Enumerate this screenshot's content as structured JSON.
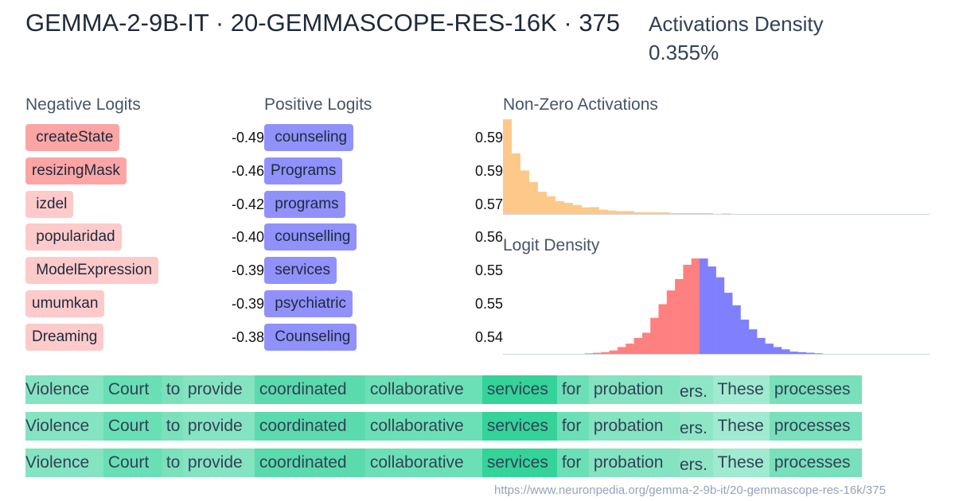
{
  "header": {
    "title": "GEMMA-2-9B-IT · 20-GEMMASCOPE-RES-16K · 375",
    "density_label": "Activations Density",
    "density_value": "0.355%"
  },
  "negative_logits": {
    "label": "Negative Logits",
    "items": [
      {
        "token": " createState",
        "value": "-0.49"
      },
      {
        "token": "resizingMask",
        "value": "-0.46"
      },
      {
        "token": " izdel",
        "value": "-0.42"
      },
      {
        "token": " popularidad",
        "value": "-0.40"
      },
      {
        "token": " ModelExpression",
        "value": "-0.39"
      },
      {
        "token": "umumkan",
        "value": "-0.39"
      },
      {
        "token": "Dreaming",
        "value": "-0.38"
      }
    ]
  },
  "positive_logits": {
    "label": "Positive Logits",
    "items": [
      {
        "token": " counseling",
        "value": "0.59"
      },
      {
        "token": "Programs",
        "value": "0.59"
      },
      {
        "token": " programs",
        "value": "0.57"
      },
      {
        "token": " counselling",
        "value": "0.56"
      },
      {
        "token": " services",
        "value": "0.55"
      },
      {
        "token": " psychiatric",
        "value": "0.55"
      },
      {
        "token": " Counseling",
        "value": "0.54"
      }
    ]
  },
  "chart_data": [
    {
      "type": "bar",
      "title": "Non-Zero Activations",
      "color": "#fdc98a",
      "values": [
        333,
        213,
        153,
        112,
        78,
        62,
        45,
        39,
        31,
        23,
        24,
        15,
        12,
        10,
        10,
        6,
        6,
        6,
        6,
        3,
        3,
        3,
        3,
        3,
        0,
        2
      ]
    },
    {
      "type": "bar",
      "title": "Logit Density",
      "negative_color": "#ff8080",
      "positive_color": "#8080ff",
      "negative_values": [
        2,
        4,
        6,
        12,
        24,
        36,
        56,
        74,
        126,
        174,
        222,
        262,
        312,
        334
      ],
      "positive_values": [
        334,
        306,
        268,
        214,
        170,
        120,
        86,
        56,
        36,
        24,
        16,
        8,
        6,
        4,
        2
      ]
    }
  ],
  "examples": [
    {
      "tokens": [
        {
          "text": "Violence",
          "color": "#84e3c1"
        },
        {
          "text": " Court",
          "color": "#68dfb5"
        },
        {
          "text": " to",
          "color": "#7ae1bb"
        },
        {
          "text": " provide",
          "color": "#84e3c1"
        },
        {
          "text": " coordinated",
          "color": "#5bdaad"
        },
        {
          "text": " collaborative",
          "color": "#6be0b6"
        },
        {
          "text": " services",
          "color": "#34d399"
        },
        {
          "text": " for",
          "color": "#6be0b6"
        },
        {
          "text": " probation",
          "color": "#84e3c1"
        },
        {
          "text": "ers.",
          "color": "#8ee6c6"
        },
        {
          "text": " These",
          "color": "#9fead0"
        },
        {
          "text": " processes",
          "color": "#78e0bb"
        }
      ]
    },
    {
      "tokens": [
        {
          "text": "Violence",
          "color": "#84e3c1"
        },
        {
          "text": " Court",
          "color": "#68dfb5"
        },
        {
          "text": " to",
          "color": "#7ae1bb"
        },
        {
          "text": " provide",
          "color": "#84e3c1"
        },
        {
          "text": " coordinated",
          "color": "#5bdaad"
        },
        {
          "text": " collaborative",
          "color": "#6be0b6"
        },
        {
          "text": " services",
          "color": "#34d399"
        },
        {
          "text": " for",
          "color": "#6be0b6"
        },
        {
          "text": " probation",
          "color": "#84e3c1"
        },
        {
          "text": "ers.",
          "color": "#8ee6c6"
        },
        {
          "text": " These",
          "color": "#9fead0"
        },
        {
          "text": " processes",
          "color": "#78e0bb"
        }
      ]
    },
    {
      "tokens": [
        {
          "text": "Violence",
          "color": "#84e3c1"
        },
        {
          "text": " Court",
          "color": "#68dfb5"
        },
        {
          "text": " to",
          "color": "#7ae1bb"
        },
        {
          "text": " provide",
          "color": "#84e3c1"
        },
        {
          "text": " coordinated",
          "color": "#5bdaad"
        },
        {
          "text": " collaborative",
          "color": "#6be0b6"
        },
        {
          "text": " services",
          "color": "#34d399"
        },
        {
          "text": " for",
          "color": "#6be0b6"
        },
        {
          "text": " probation",
          "color": "#84e3c1"
        },
        {
          "text": "ers.",
          "color": "#8ee6c6"
        },
        {
          "text": " These",
          "color": "#9fead0"
        },
        {
          "text": " processes",
          "color": "#78e0bb"
        }
      ]
    }
  ],
  "footer": {
    "url": "https://www.neuronpedia.org/gemma-2-9b-it/20-gemmascope-res-16k/375"
  }
}
